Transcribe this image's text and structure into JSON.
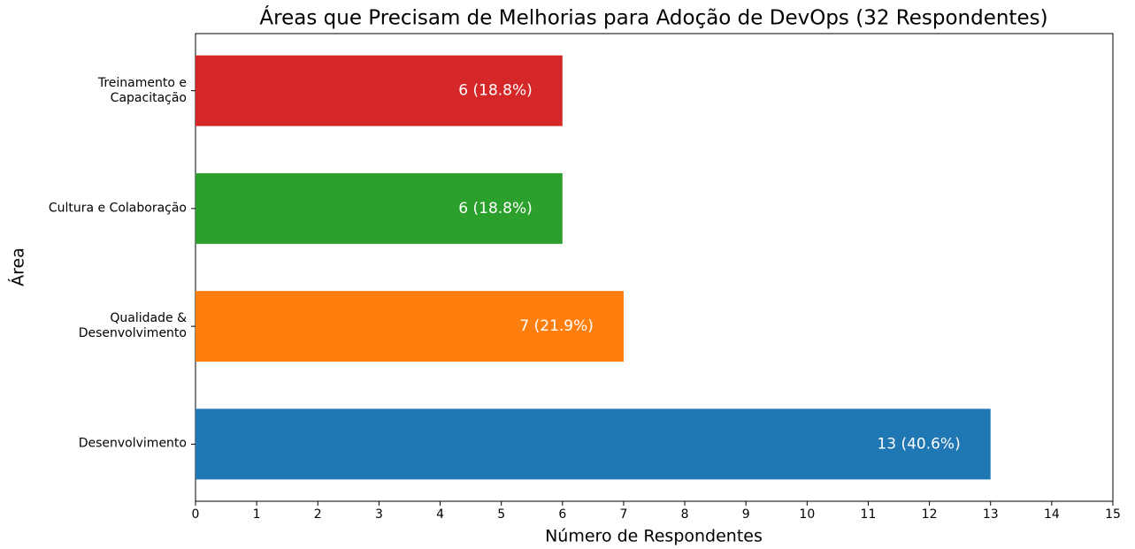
{
  "chart_data": {
    "type": "barh",
    "title": "Áreas que Precisam de Melhorias para Adoção de DevOps (32 Respondentes)",
    "xlabel": "Número de Respondentes",
    "ylabel": "Área",
    "categories": [
      "Desenvolvimento",
      "Qualidade &\nDesenvolvimento",
      "Cultura e Colaboração",
      "Treinamento e\nCapacitação"
    ],
    "values": [
      13,
      7,
      6,
      6
    ],
    "value_labels": [
      "13 (40.6%)",
      "7 (21.9%)",
      "6 (18.8%)",
      "6 (18.8%)"
    ],
    "colors": [
      "#1f77b4",
      "#ff7f0e",
      "#2ca02c",
      "#d62728"
    ],
    "xlim": [
      0,
      15
    ],
    "xticks": [
      0,
      1,
      2,
      3,
      4,
      5,
      6,
      7,
      8,
      9,
      10,
      11,
      12,
      13,
      14,
      15
    ],
    "grid": false
  }
}
